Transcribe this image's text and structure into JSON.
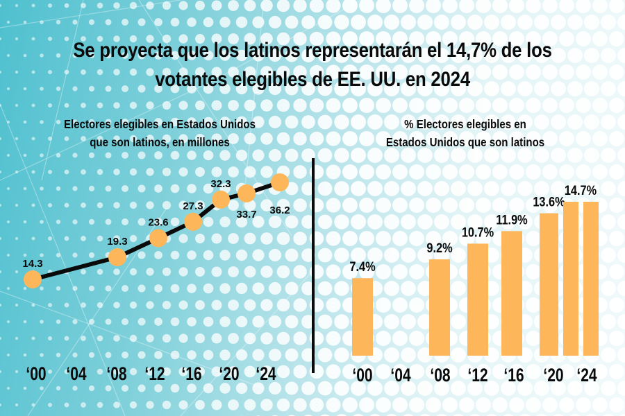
{
  "title": {
    "line1": "Se proyecta que los latinos representarán el 14,7% de los",
    "line2": "votantes elegibles de EE. UU. en 2024"
  },
  "colors": {
    "accent": "#FDB75A",
    "line": "#0a0a0a",
    "text": "#0a0a0a",
    "background_teal": "#4fc0cf",
    "background_light": "#f2fafb"
  },
  "chart_data": [
    {
      "type": "line",
      "title_line1": "Electores elegibles en Estados Unidos",
      "title_line2": "que son latinos, en millones",
      "xlabel": "",
      "ylabel": "",
      "x_ticks": [
        2000,
        2004,
        2008,
        2012,
        2016,
        2020,
        2024
      ],
      "tick_labels": [
        "‘00",
        "‘04",
        "‘08",
        "‘12",
        "‘16",
        "‘20",
        "‘24"
      ],
      "x": [
        2000,
        2008,
        2012,
        2016,
        2020,
        2022,
        2024
      ],
      "values": [
        14.3,
        19.3,
        23.6,
        27.3,
        32.3,
        33.7,
        36.2
      ],
      "data_labels": [
        "14.3",
        "19.3",
        "23.6",
        "27.3",
        "32.3",
        "33.7",
        "36.2"
      ],
      "label_pos": [
        "above",
        "above",
        "above",
        "above",
        "above",
        "below",
        "below"
      ],
      "xlim": [
        2000,
        2024
      ],
      "ylim": [
        14.3,
        36.2
      ],
      "grid": false,
      "legend": "none"
    },
    {
      "type": "bar",
      "title_line1": "% Electores elegibles en",
      "title_line2": "Estados Unidos que son latinos",
      "xlabel": "",
      "ylabel": "",
      "x_ticks": [
        2000,
        2004,
        2008,
        2012,
        2016,
        2020,
        2024
      ],
      "tick_labels": [
        "‘00",
        "‘04",
        "‘08",
        "‘12",
        "‘16",
        "‘20",
        "‘24"
      ],
      "x": [
        2000,
        2008,
        2012,
        2016,
        2020,
        2022,
        2024
      ],
      "values": [
        7.4,
        9.2,
        10.7,
        11.9,
        13.6,
        14.7,
        14.7
      ],
      "data_labels": [
        "7.4%",
        "9.2%",
        "10.7%",
        "11.9%",
        "13.6%",
        "",
        "14.7%"
      ],
      "ylim": [
        0,
        14.7
      ],
      "grid": false,
      "legend": "none"
    }
  ]
}
